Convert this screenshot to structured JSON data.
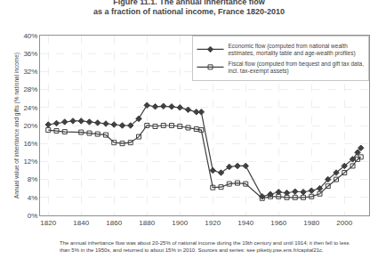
{
  "chart_data": {
    "type": "line",
    "title": "Figure 11.1. The annual inheritance flow\nas a fraction of national income, France 1820-2010",
    "y_label": "Annual value of inheritance and gifts (% national income)",
    "annotations": [
      "The annual inheritance flow was about 20-25% of national income during the 19th century and until 1914; it then fell to less\nthan 5% in the 1950s, and returned to about 15% in 2010. Sources and series: see piketty.pse.ens.fr/capital21c."
    ],
    "xlim": [
      1815,
      2015
    ],
    "xticks": [
      1820,
      1840,
      1860,
      1880,
      1900,
      1920,
      1940,
      1960,
      1980,
      2000
    ],
    "ylim": [
      0,
      0.4
    ],
    "yticks": [
      {
        "value": 0,
        "label": "0%"
      },
      {
        "value": 0.04,
        "label": "4%"
      },
      {
        "value": 0.08,
        "label": "8%"
      },
      {
        "value": 0.12,
        "label": "12%"
      },
      {
        "value": 0.16,
        "label": "16%"
      },
      {
        "value": 0.2,
        "label": "20%"
      },
      {
        "value": 0.24,
        "label": "24%"
      },
      {
        "value": 0.28,
        "label": "28%"
      },
      {
        "value": 0.32,
        "label": "32%"
      },
      {
        "value": 0.36,
        "label": "36%"
      },
      {
        "value": 0.4,
        "label": "40%"
      }
    ],
    "grid": true,
    "legend": "upper right",
    "series": [
      {
        "name": "Economic flow (computed from national wealth\nestimates, mortality table and age-wealth profiles)",
        "color": "#404040",
        "marker": "diamond",
        "x": [
          1820,
          1825,
          1830,
          1835,
          1840,
          1845,
          1850,
          1855,
          1860,
          1865,
          1870,
          1875,
          1880,
          1885,
          1890,
          1895,
          1900,
          1905,
          1910,
          1913,
          1920,
          1925,
          1930,
          1935,
          1940,
          1950,
          1955,
          1960,
          1965,
          1970,
          1975,
          1980,
          1985,
          1990,
          1995,
          2000,
          2005,
          2008,
          2010
        ],
        "values": [
          0.202,
          0.205,
          0.208,
          0.21,
          0.21,
          0.208,
          0.206,
          0.204,
          0.202,
          0.2,
          0.2,
          0.215,
          0.245,
          0.242,
          0.243,
          0.242,
          0.24,
          0.235,
          0.23,
          0.23,
          0.1,
          0.095,
          0.108,
          0.11,
          0.11,
          0.042,
          0.047,
          0.052,
          0.05,
          0.053,
          0.052,
          0.055,
          0.06,
          0.08,
          0.095,
          0.11,
          0.125,
          0.14,
          0.15
        ]
      },
      {
        "name": "Fiscal flow (computed from bequest and gift tax data,\nincl. tax-exempt assets)",
        "color": "#404040",
        "marker": "square-open",
        "x": [
          1820,
          1825,
          1830,
          1840,
          1845,
          1850,
          1855,
          1860,
          1865,
          1870,
          1875,
          1880,
          1885,
          1890,
          1895,
          1900,
          1905,
          1910,
          1913,
          1920,
          1925,
          1930,
          1935,
          1940,
          1950,
          1955,
          1960,
          1965,
          1970,
          1975,
          1980,
          1985,
          1990,
          1995,
          2000,
          2005,
          2008,
          2010
        ],
        "values": [
          0.19,
          0.188,
          0.186,
          0.185,
          0.183,
          0.181,
          0.179,
          0.162,
          0.16,
          0.162,
          0.175,
          0.2,
          0.198,
          0.2,
          0.2,
          0.198,
          0.195,
          0.192,
          0.19,
          0.062,
          0.063,
          0.07,
          0.072,
          0.07,
          0.038,
          0.042,
          0.042,
          0.04,
          0.04,
          0.04,
          0.042,
          0.048,
          0.065,
          0.08,
          0.095,
          0.11,
          0.125,
          0.13
        ]
      }
    ]
  }
}
